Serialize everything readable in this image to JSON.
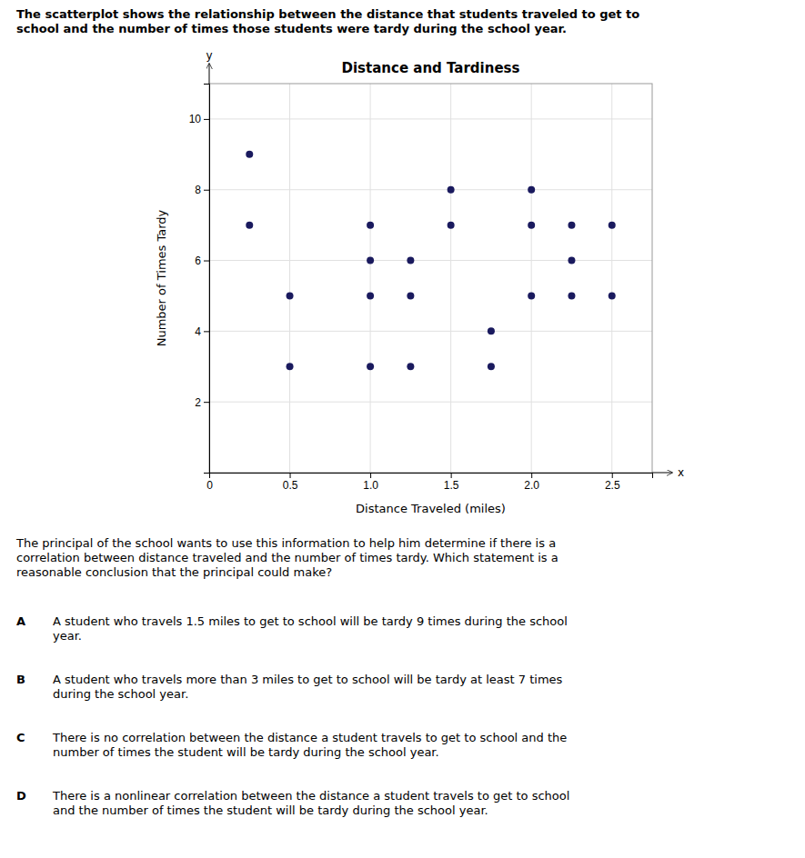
{
  "chart_data": {
    "type": "scatter",
    "title": "Distance and Tardiness",
    "xlabel": "Distance Traveled (miles)",
    "ylabel": "Number of Times Tardy",
    "x": [
      0.25,
      0.25,
      0.5,
      0.5,
      1.0,
      1.0,
      1.0,
      1.0,
      1.25,
      1.25,
      1.25,
      1.5,
      1.5,
      1.75,
      1.75,
      2.0,
      2.0,
      2.0,
      2.25,
      2.25,
      2.25,
      2.5,
      2.5
    ],
    "values": [
      9,
      7,
      5,
      3,
      7,
      6,
      5,
      3,
      6,
      5,
      3,
      8,
      7,
      4,
      3,
      8,
      7,
      5,
      7,
      6,
      5,
      7,
      5
    ],
    "color": "#1a1a5e",
    "xlim": [
      0,
      2.75
    ],
    "ylim": [
      0,
      11
    ],
    "xticks": [
      0,
      0.5,
      {
        "value": 1.0,
        "label": "1.0"
      },
      1.5,
      {
        "value": 2.0,
        "label": "2.0"
      },
      2.5
    ],
    "yticks": [
      2,
      4,
      6,
      8,
      10
    ],
    "grid": true,
    "annotations": [
      "The scatterplot shows the relationship between the distance that students traveled to get to\nschool and the number of times those students were tardy during the school year.",
      "The principal of the school wants to use this information to help him determine if there is a\ncorrelation between distance traveled and the number of times tardy. Which statement is a\nreasonable conclusion that the principal could make?",
      "A",
      "A student who travels 1.5 miles to get to school will be tardy 9 times during the school\nyear.",
      "B",
      "A student who travels more than 3 miles to get to school will be tardy at least 7 times\nduring the school year.",
      "C",
      "There is no correlation between the distance a student travels to get to school and the\nnumber of times the student will be tardy during the school year.",
      "D",
      "There is a nonlinear correlation between the distance a student travels to get to school\nand the number of times the student will be tardy during the school year.",
      "x",
      "y"
    ]
  }
}
